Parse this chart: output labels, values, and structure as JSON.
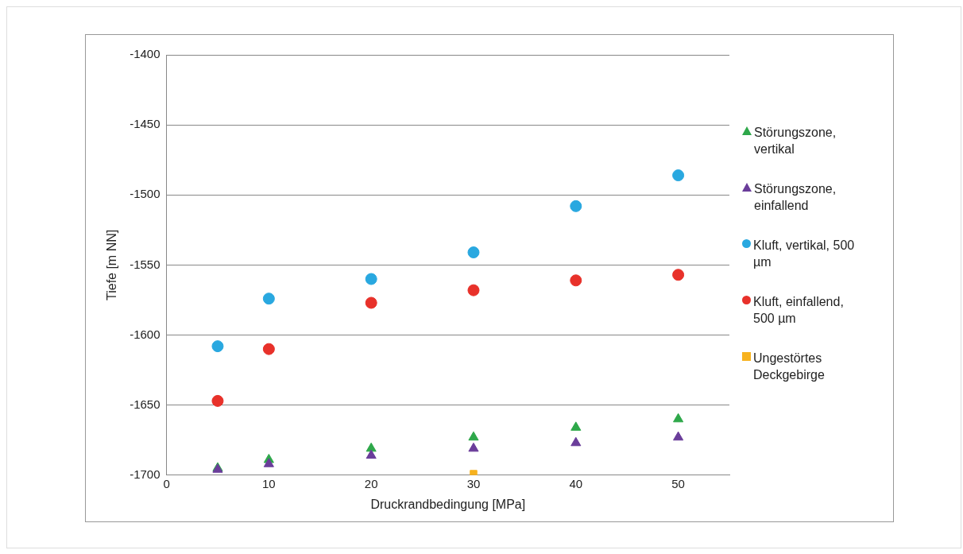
{
  "chart_data": {
    "type": "scatter",
    "xlabel": "Druckrandbedingung [MPa]",
    "ylabel": "Tiefe [m NN]",
    "x": [
      5,
      10,
      20,
      30,
      40,
      50
    ],
    "xlim": [
      0,
      55
    ],
    "xticks": [
      0,
      10,
      20,
      30,
      40,
      50
    ],
    "ylim": [
      -1700,
      -1400
    ],
    "yticks": [
      -1700,
      -1650,
      -1600,
      -1550,
      -1500,
      -1450,
      -1400
    ],
    "grid": "y",
    "legend": "right",
    "series": [
      {
        "name": "Störungszone, vertikal",
        "color": "#2ea84a",
        "marker": "triangle",
        "values": [
          -1695,
          -1689,
          -1681,
          -1673,
          -1666,
          -1660
        ]
      },
      {
        "name": "Störungszone, einfallend",
        "color": "#6a3d9a",
        "marker": "triangle",
        "values": [
          -1696,
          -1692,
          -1686,
          -1681,
          -1677,
          -1673
        ]
      },
      {
        "name": "Kluft, vertikal, 500 µm",
        "color": "#29a8e0",
        "marker": "circle",
        "values": [
          -1608,
          -1574,
          -1560,
          -1541,
          -1508,
          -1486
        ]
      },
      {
        "name": "Kluft, einfallend, 500 µm",
        "color": "#e8312a",
        "marker": "circle",
        "values": [
          -1647,
          -1610,
          -1577,
          -1568,
          -1561,
          -1557
        ]
      },
      {
        "name": "Ungestörtes Deckgebirge",
        "color": "#f7b21e",
        "marker": "square",
        "x": [
          30
        ],
        "values": [
          -1699
        ]
      }
    ]
  }
}
